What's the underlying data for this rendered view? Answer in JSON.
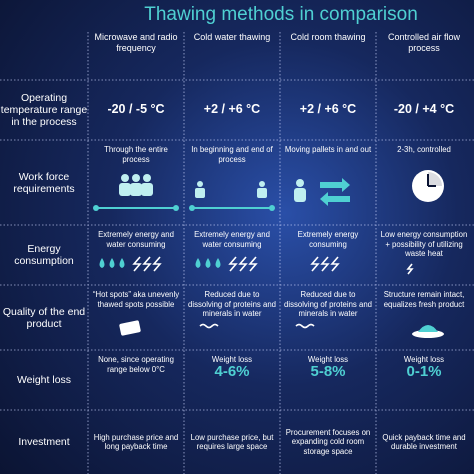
{
  "title": "Thawing methods in comparison",
  "columns": [
    "Microwave and radio frequency",
    "Cold water thawing",
    "Cold room thawing",
    "Controlled air flow process"
  ],
  "rows": [
    {
      "label": "Operating temperature range in the process",
      "cells": [
        "-20 / -5 °C",
        "+2 / +6 °C",
        "+2 / +6 °C",
        "-20 / +4 °C"
      ]
    },
    {
      "label": "Work force requirements",
      "cells": [
        "Through the entire process",
        "In beginning and end of process",
        "Moving pallets in and out",
        "2-3h, controlled"
      ]
    },
    {
      "label": "Energy consumption",
      "cells": [
        "Extremely energy and water consuming",
        "Extremely energy and water consuming",
        "Extremely energy consuming",
        "Low energy consumption + possibility of utilizing waste heat"
      ]
    },
    {
      "label": "Quality of the end product",
      "cells": [
        "“Hot spots” aka unevenly thawed spots possible",
        "Reduced due to dissolving of proteins and minerals in water",
        "Reduced due to dissolving of proteins and minerals in water",
        "Structure remain intact, equalizes fresh product"
      ]
    },
    {
      "label": "Weight loss",
      "cells": [
        {
          "text": "None, since operating range below 0°C"
        },
        {
          "text": "Weight loss",
          "value": "4-6%"
        },
        {
          "text": "Weight loss",
          "value": "5-8%"
        },
        {
          "text": "Weight loss",
          "value": "0-1%"
        }
      ]
    },
    {
      "label": "Investment",
      "cells": [
        "High purchase price and long payback time",
        "Low purchase price, but requires large space",
        "Procurement focuses on expanding cold room storage space",
        "Quick payback time and durable investment"
      ]
    }
  ]
}
